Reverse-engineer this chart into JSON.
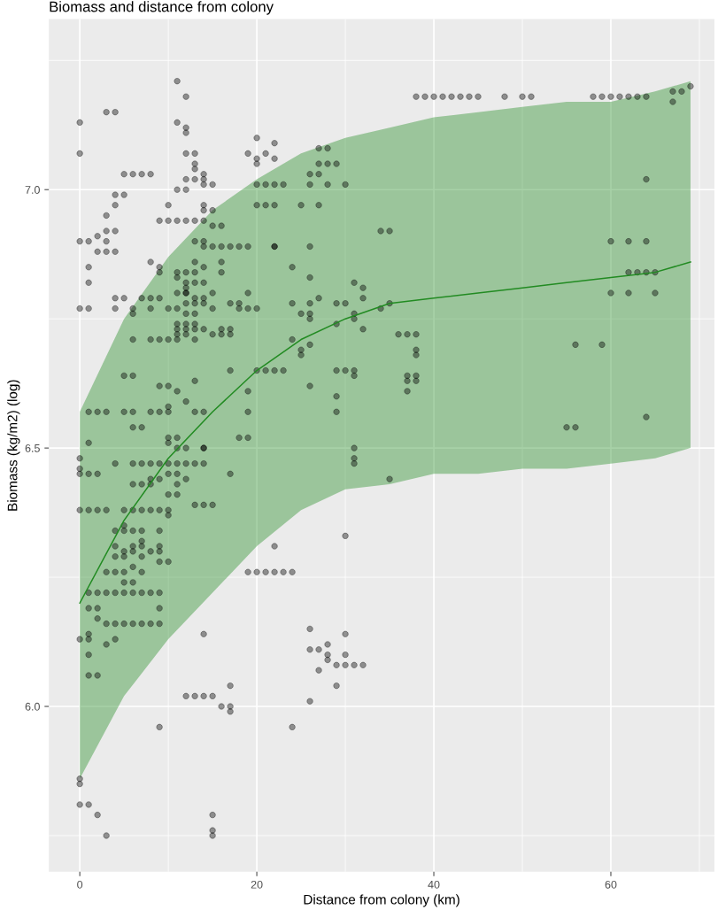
{
  "chart_data": {
    "type": "scatter",
    "title": "Biomass and distance from colony",
    "xlabel": "Distance from colony (km)",
    "ylabel": "Biomass (kg/m2) (log)",
    "xlim": [
      -3.5,
      71.7
    ],
    "ylim": [
      5.68,
      7.33
    ],
    "xticks": [
      0,
      20,
      40,
      60
    ],
    "yticks": [
      {
        "value": 6,
        "label": "6.0"
      },
      {
        "value": 6.5,
        "label": "6.5"
      },
      {
        "value": 7,
        "label": "7.0"
      }
    ],
    "grid": true,
    "marker": "circle",
    "series": [
      {
        "color": "#000000",
        "x": [
          38,
          39,
          40,
          41,
          42,
          43,
          44,
          45,
          48,
          50,
          51,
          58,
          59,
          60,
          61,
          62,
          63,
          64,
          67,
          68,
          69,
          67,
          64,
          60,
          62,
          64,
          62,
          63,
          64,
          65,
          60,
          62,
          65,
          56,
          59,
          64,
          55,
          56,
          20,
          21,
          22,
          23,
          20,
          21,
          22,
          25,
          27,
          34,
          35,
          22,
          26,
          24,
          26,
          31,
          32,
          32,
          27,
          24,
          26,
          26,
          25,
          29,
          30,
          31,
          31,
          34,
          35,
          26,
          29,
          32,
          36,
          37,
          38,
          38,
          38,
          37,
          38,
          37,
          38,
          37,
          24,
          25,
          25,
          26,
          20,
          21,
          22,
          23,
          29,
          30,
          31,
          31,
          26,
          29,
          29,
          31,
          31,
          35,
          26,
          27,
          27,
          28,
          29,
          27,
          28,
          26,
          28,
          30,
          31,
          22,
          30,
          19,
          20,
          21,
          22,
          23,
          24,
          26,
          30,
          26,
          27,
          28,
          28,
          28,
          27,
          29,
          30,
          31,
          32,
          30,
          29,
          26,
          24,
          12,
          13,
          14,
          15,
          16,
          17,
          17,
          17,
          9,
          0,
          0,
          0,
          1,
          2,
          3,
          15,
          15,
          15,
          14,
          0,
          0,
          0,
          1,
          2,
          0,
          1,
          2,
          3,
          4,
          6,
          7,
          8,
          9,
          10,
          11,
          12,
          13,
          14,
          8,
          9,
          11,
          12,
          6,
          7,
          8,
          10,
          11,
          10,
          11,
          5,
          6,
          7,
          8,
          9,
          10,
          5,
          10,
          4,
          5,
          6,
          7,
          9,
          4,
          6,
          7,
          9,
          7,
          5,
          6,
          8,
          9,
          7,
          9,
          10,
          4,
          5,
          6,
          7,
          3,
          4,
          5,
          5,
          6,
          1,
          2,
          3,
          4,
          5,
          6,
          7,
          8,
          9,
          1,
          2,
          9,
          2,
          3,
          4,
          5,
          6,
          7,
          8,
          9,
          1,
          0,
          1,
          3,
          4,
          1,
          1,
          2,
          17,
          13,
          14,
          15,
          14,
          0,
          0,
          3,
          4,
          11,
          12,
          11,
          12,
          12,
          20,
          22,
          19,
          20,
          21,
          20,
          22,
          12,
          13,
          13,
          13,
          12,
          13,
          14,
          14,
          14,
          15,
          11,
          12,
          5,
          6,
          7,
          8,
          4,
          5,
          10,
          14,
          14,
          15,
          9,
          10,
          11,
          12,
          13,
          14,
          3,
          4,
          2,
          3,
          4,
          0,
          1,
          2,
          3,
          4,
          3,
          1,
          1,
          8,
          9,
          9,
          0,
          1,
          4,
          5,
          7,
          8,
          9,
          4,
          6,
          6,
          15,
          13,
          14,
          14,
          15,
          16,
          17,
          18,
          19,
          22,
          16,
          13,
          14,
          16,
          16,
          11,
          12,
          13,
          11,
          12,
          12,
          12,
          13,
          14,
          13,
          14,
          15,
          11,
          12,
          19,
          17,
          18,
          8,
          10,
          11,
          12,
          13,
          14,
          15,
          18,
          19,
          20,
          12,
          13,
          11,
          12,
          13,
          11,
          12,
          13,
          14,
          11,
          12,
          15,
          16,
          17,
          16,
          17,
          6,
          8,
          9,
          10,
          11,
          13,
          17,
          5,
          6,
          9,
          10,
          11,
          13,
          12,
          19,
          10,
          10,
          1,
          2,
          3,
          5,
          6,
          8,
          9,
          13,
          14,
          19,
          6,
          7,
          18,
          19,
          1,
          10,
          11,
          10,
          11,
          12,
          14
        ],
        "values": [
          7.18,
          7.18,
          7.18,
          7.18,
          7.18,
          7.18,
          7.18,
          7.18,
          7.18,
          7.18,
          7.18,
          7.18,
          7.18,
          7.18,
          7.18,
          7.18,
          7.18,
          7.18,
          7.19,
          7.19,
          7.2,
          7.17,
          7.02,
          6.9,
          6.9,
          6.9,
          6.84,
          6.84,
          6.84,
          6.84,
          6.8,
          6.8,
          6.8,
          6.7,
          6.7,
          6.56,
          6.54,
          6.54,
          7.01,
          7.01,
          7.01,
          7.01,
          6.97,
          6.97,
          6.97,
          6.97,
          6.97,
          6.92,
          6.92,
          6.89,
          6.89,
          6.85,
          6.83,
          6.82,
          6.81,
          6.79,
          6.79,
          6.78,
          6.78,
          6.76,
          6.76,
          6.78,
          6.78,
          6.76,
          6.75,
          6.77,
          6.78,
          6.75,
          6.74,
          6.73,
          6.72,
          6.72,
          6.72,
          6.69,
          6.68,
          6.64,
          6.64,
          6.63,
          6.63,
          6.61,
          6.71,
          6.69,
          6.68,
          6.7,
          6.65,
          6.65,
          6.65,
          6.65,
          6.65,
          6.65,
          6.65,
          6.64,
          6.62,
          6.6,
          6.57,
          6.5,
          6.48,
          6.44,
          7.03,
          7.03,
          7.05,
          7.05,
          7.05,
          7.08,
          7.08,
          7.01,
          7.01,
          7.01,
          6.47,
          6.31,
          6.33,
          6.26,
          6.26,
          6.26,
          6.26,
          6.26,
          6.26,
          6.15,
          6.14,
          6.11,
          6.11,
          6.12,
          6.1,
          6.09,
          6.07,
          6.08,
          6.08,
          6.08,
          6.08,
          6.1,
          6.04,
          6.01,
          5.96,
          6.02,
          6.02,
          6.02,
          6.02,
          6.0,
          6.04,
          6.0,
          5.99,
          5.96,
          5.86,
          5.85,
          5.81,
          5.81,
          5.79,
          5.75,
          5.79,
          5.75,
          5.76,
          6.14,
          6.48,
          6.46,
          6.45,
          6.45,
          6.45,
          6.38,
          6.38,
          6.38,
          6.38,
          6.47,
          6.47,
          6.47,
          6.47,
          6.47,
          6.47,
          6.47,
          6.47,
          6.47,
          6.47,
          6.44,
          6.44,
          6.43,
          6.44,
          6.43,
          6.43,
          6.43,
          6.45,
          6.45,
          6.41,
          6.41,
          6.38,
          6.38,
          6.38,
          6.38,
          6.38,
          6.38,
          6.35,
          6.37,
          6.34,
          6.34,
          6.34,
          6.34,
          6.34,
          6.31,
          6.31,
          6.32,
          6.31,
          6.31,
          6.3,
          6.3,
          6.3,
          6.3,
          6.29,
          6.28,
          6.28,
          6.29,
          6.29,
          6.27,
          6.26,
          6.26,
          6.26,
          6.26,
          6.24,
          6.24,
          6.22,
          6.22,
          6.22,
          6.22,
          6.22,
          6.22,
          6.22,
          6.22,
          6.22,
          6.19,
          6.19,
          6.19,
          6.17,
          6.16,
          6.16,
          6.16,
          6.16,
          6.16,
          6.16,
          6.16,
          6.14,
          6.13,
          6.13,
          6.12,
          6.13,
          6.1,
          6.06,
          6.06,
          6.45,
          6.39,
          6.39,
          6.39,
          6.5,
          7.13,
          7.07,
          7.15,
          7.15,
          7.21,
          7.18,
          7.13,
          7.12,
          7.11,
          7.1,
          7.09,
          7.07,
          7.06,
          7.07,
          7.05,
          7.06,
          7.07,
          7.07,
          7.05,
          7.04,
          7.02,
          7.02,
          7.03,
          7.02,
          7.01,
          7.01,
          7.0,
          7.0,
          7.03,
          7.03,
          7.03,
          7.03,
          6.99,
          6.99,
          6.97,
          6.97,
          6.96,
          6.96,
          6.94,
          6.94,
          6.94,
          6.94,
          6.94,
          6.94,
          6.95,
          6.97,
          6.91,
          6.92,
          6.92,
          6.9,
          6.9,
          6.88,
          6.88,
          6.88,
          6.9,
          6.85,
          6.82,
          6.86,
          6.85,
          6.84,
          6.77,
          6.77,
          6.79,
          6.79,
          6.79,
          6.79,
          6.79,
          6.77,
          6.77,
          6.76,
          6.93,
          6.9,
          6.9,
          6.89,
          6.89,
          6.89,
          6.89,
          6.89,
          6.89,
          6.89,
          6.93,
          6.86,
          6.85,
          6.86,
          6.84,
          6.84,
          6.84,
          6.84,
          6.83,
          6.82,
          6.81,
          6.8,
          6.82,
          6.82,
          6.79,
          6.79,
          6.8,
          6.8,
          6.8,
          6.8,
          6.78,
          6.78,
          6.77,
          6.77,
          6.77,
          6.78,
          6.78,
          6.78,
          6.77,
          6.77,
          6.77,
          6.77,
          6.76,
          6.76,
          6.74,
          6.74,
          6.74,
          6.73,
          6.73,
          6.73,
          6.73,
          6.72,
          6.72,
          6.72,
          6.72,
          6.72,
          6.73,
          6.73,
          6.71,
          6.71,
          6.71,
          6.71,
          6.71,
          6.71,
          6.65,
          6.64,
          6.64,
          6.62,
          6.62,
          6.61,
          6.63,
          6.59,
          6.61,
          6.58,
          6.57,
          6.57,
          6.57,
          6.57,
          6.57,
          6.57,
          6.57,
          6.57,
          6.57,
          6.57,
          6.57,
          6.54,
          6.54,
          6.52,
          6.52,
          6.51,
          6.52,
          6.52,
          6.51,
          6.5,
          6.5,
          6.5
        ]
      },
      {
        "type": "line",
        "marker": "none",
        "color": "#228b22",
        "x": [
          0,
          5,
          10,
          15,
          20,
          25,
          30,
          35,
          40,
          45,
          50,
          55,
          60,
          65,
          69
        ],
        "values": [
          6.2,
          6.36,
          6.48,
          6.57,
          6.65,
          6.71,
          6.75,
          6.78,
          6.79,
          6.8,
          6.81,
          6.82,
          6.83,
          6.84,
          6.86
        ],
        "upper": [
          6.57,
          6.75,
          6.87,
          6.96,
          7.02,
          7.07,
          7.1,
          7.12,
          7.14,
          7.15,
          7.16,
          7.17,
          7.17,
          7.19,
          7.21
        ],
        "lower": [
          5.86,
          6.02,
          6.13,
          6.22,
          6.31,
          6.38,
          6.42,
          6.43,
          6.45,
          6.45,
          6.46,
          6.46,
          6.47,
          6.48,
          6.5
        ]
      }
    ]
  }
}
